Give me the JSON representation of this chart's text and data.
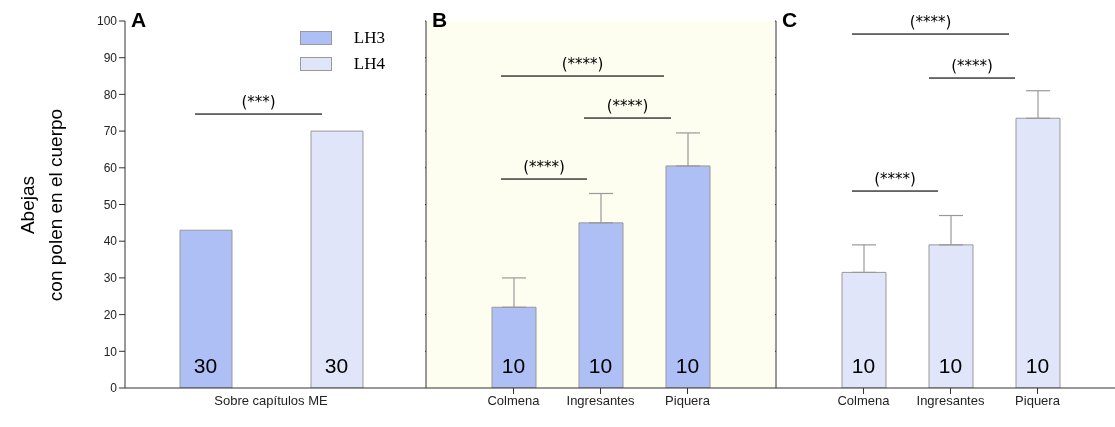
{
  "chart_data": [
    {
      "type": "bar",
      "title": "A",
      "ylabel": "Abejas\ncon polen en el cuerpo",
      "categories": [
        "Sobre capítulos ME"
      ],
      "series": [
        {
          "name": "LH3",
          "color": "#aebff5",
          "values": [
            43
          ]
        },
        {
          "name": "LH4",
          "color": "#e0e5fa",
          "values": [
            70
          ]
        }
      ],
      "ylim": [
        0,
        100
      ],
      "yticks": [
        0,
        10,
        20,
        30,
        40,
        50,
        60,
        70,
        80,
        90,
        100
      ],
      "legend": "top right",
      "grid": false,
      "annotations": [
        "(***)",
        "30",
        "30"
      ]
    },
    {
      "type": "bar",
      "title": "B",
      "categories": [
        "Colmena",
        "Ingresantes",
        "Piquera"
      ],
      "series": [
        {
          "color": "#aebff5",
          "values": [
            22,
            45,
            60.5
          ],
          "errors": [
            [
              22,
              30
            ],
            [
              45,
              53
            ],
            [
              60.5,
              69.5
            ]
          ]
        }
      ],
      "ylim": [
        0,
        100
      ],
      "yticks": [
        0,
        10,
        20,
        30,
        40,
        50,
        60,
        70,
        80,
        90,
        100
      ],
      "tick_labels": "x",
      "grid": false,
      "annotations": [
        "(****)",
        "(****)",
        "(****)",
        "10",
        "10",
        "10"
      ]
    },
    {
      "type": "bar",
      "title": "C",
      "categories": [
        "Colmena",
        "Ingresantes",
        "Piquera"
      ],
      "series": [
        {
          "color": "#e0e5fa",
          "values": [
            31.5,
            39,
            73.5
          ],
          "errors": [
            [
              31.5,
              39
            ],
            [
              39,
              47
            ],
            [
              73.5,
              81
            ]
          ]
        }
      ],
      "ylim": [
        0,
        100
      ],
      "yticks": [
        0,
        10,
        20,
        30,
        40,
        50,
        60,
        70,
        80,
        90,
        100
      ],
      "tick_labels": "x",
      "grid": false,
      "annotations": [
        "(****)",
        "(****)",
        "(****)",
        "10",
        "10",
        "10"
      ]
    }
  ]
}
